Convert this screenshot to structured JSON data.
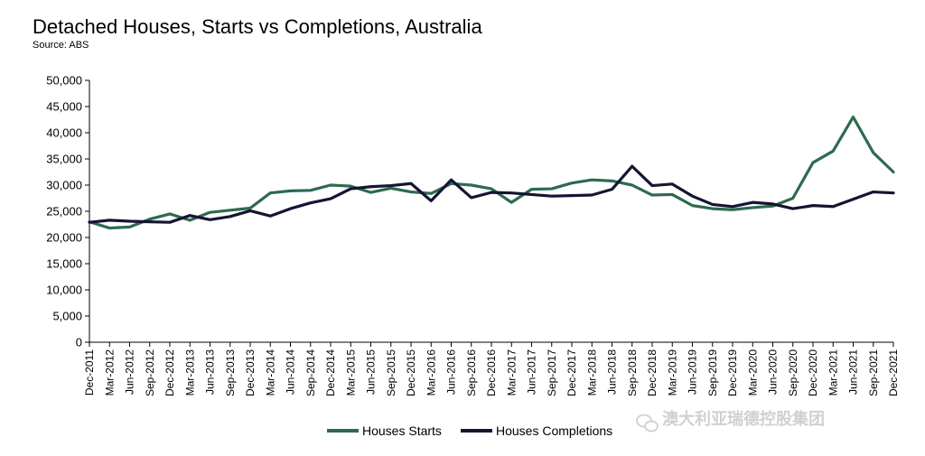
{
  "colors": {
    "starts": "#2d6b4e",
    "completions": "#141433",
    "axis": "#000000"
  },
  "watermark": {
    "text": "澳大利亚瑞德控股集团"
  },
  "chart_data": {
    "type": "line",
    "title": "Detached Houses, Starts vs Completions, Australia",
    "subtitle": "Source: ABS",
    "xlabel": "",
    "ylabel": "",
    "ylim": [
      0,
      50000
    ],
    "ytick_values": [
      0,
      5000,
      10000,
      15000,
      20000,
      25000,
      30000,
      35000,
      40000,
      45000,
      50000
    ],
    "ytick_labels": [
      "0",
      "5,000",
      "10,000",
      "15,000",
      "20,000",
      "25,000",
      "30,000",
      "35,000",
      "40,000",
      "45,000",
      "50,000"
    ],
    "categories": [
      "Dec-2011",
      "Mar-2012",
      "Jun-2012",
      "Sep-2012",
      "Dec-2012",
      "Mar-2013",
      "Jun-2013",
      "Sep-2013",
      "Dec-2013",
      "Mar-2014",
      "Jun-2014",
      "Sep-2014",
      "Dec-2014",
      "Mar-2015",
      "Jun-2015",
      "Sep-2015",
      "Dec-2015",
      "Mar-2016",
      "Jun-2016",
      "Sep-2016",
      "Dec-2016",
      "Mar-2017",
      "Jun-2017",
      "Sep-2017",
      "Dec-2017",
      "Mar-2018",
      "Jun-2018",
      "Sep-2018",
      "Dec-2018",
      "Mar-2019",
      "Jun-2019",
      "Sep-2019",
      "Dec-2019",
      "Mar-2020",
      "Jun-2020",
      "Sep-2020",
      "Dec-2020",
      "Mar-2021",
      "Jun-2021",
      "Sep-2021",
      "Dec-2021"
    ],
    "series": [
      {
        "name": "Houses Starts",
        "color": "#2d6b4e",
        "values": [
          23000,
          21800,
          22000,
          23500,
          24500,
          23300,
          24800,
          25200,
          25600,
          28500,
          28900,
          29000,
          30000,
          29800,
          28600,
          29400,
          28700,
          28400,
          30300,
          30000,
          29300,
          26700,
          29200,
          29300,
          30400,
          31000,
          30800,
          30000,
          28100,
          28200,
          26100,
          25500,
          25300,
          25700,
          26000,
          27500,
          34300,
          36500,
          43000,
          36200,
          32500
        ]
      },
      {
        "name": "Houses Completions",
        "color": "#141433",
        "values": [
          22900,
          23300,
          23100,
          23000,
          22900,
          24200,
          23400,
          24000,
          25100,
          24100,
          25500,
          26600,
          27400,
          29300,
          29700,
          29900,
          30300,
          27000,
          31000,
          27600,
          28600,
          28500,
          28200,
          27900,
          28000,
          28100,
          29200,
          33600,
          29900,
          30200,
          27900,
          26300,
          25900,
          26700,
          26400,
          25500,
          26100,
          25900,
          27300,
          28700,
          28500
        ]
      }
    ],
    "legend": {
      "position": "bottom-center",
      "entries": [
        "Houses Starts",
        "Houses Completions"
      ]
    },
    "grid": false
  }
}
